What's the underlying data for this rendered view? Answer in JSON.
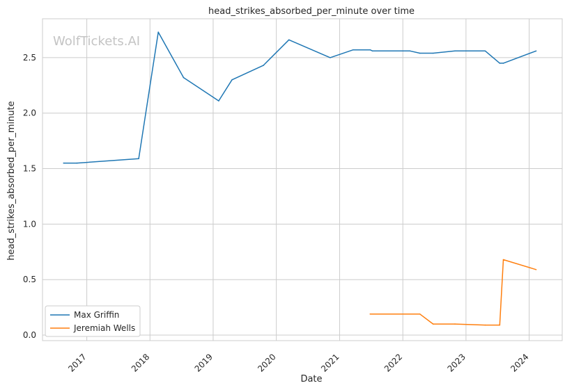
{
  "chart_data": {
    "type": "line",
    "title": "head_strikes_absorbed_per_minute over time",
    "xlabel": "Date",
    "ylabel": "head_strikes_absorbed_per_minute",
    "watermark": "WolfTickets.AI",
    "x_ticks": [
      "2017",
      "2018",
      "2019",
      "2020",
      "2021",
      "2022",
      "2023",
      "2024"
    ],
    "y_ticks": [
      "0.0",
      "0.5",
      "1.0",
      "1.5",
      "2.0",
      "2.5"
    ],
    "xlim": [
      "2016-04-20",
      "2024-07-10"
    ],
    "ylim": [
      -0.05,
      2.85
    ],
    "grid": true,
    "legend_position": "lower-left",
    "series": [
      {
        "name": "Max Griffin",
        "color": "#1f77b4",
        "points": [
          [
            "2016-08-20",
            1.55
          ],
          [
            "2016-11-05",
            1.55
          ],
          [
            "2017-10-28",
            1.59
          ],
          [
            "2018-02-18",
            2.73
          ],
          [
            "2018-07-14",
            2.32
          ],
          [
            "2019-02-02",
            2.11
          ],
          [
            "2019-04-20",
            2.3
          ],
          [
            "2019-10-18",
            2.43
          ],
          [
            "2020-03-14",
            2.66
          ],
          [
            "2020-11-07",
            2.5
          ],
          [
            "2021-03-20",
            2.57
          ],
          [
            "2021-06-26",
            2.57
          ],
          [
            "2021-07-10",
            2.56
          ],
          [
            "2022-02-12",
            2.56
          ],
          [
            "2022-04-09",
            2.54
          ],
          [
            "2022-06-25",
            2.54
          ],
          [
            "2022-10-29",
            2.56
          ],
          [
            "2023-04-22",
            2.56
          ],
          [
            "2023-07-15",
            2.45
          ],
          [
            "2023-08-05",
            2.45
          ],
          [
            "2024-02-10",
            2.56
          ]
        ]
      },
      {
        "name": "Jeremiah Wells",
        "color": "#ff7f0e",
        "points": [
          [
            "2021-06-26",
            0.19
          ],
          [
            "2022-04-09",
            0.19
          ],
          [
            "2022-06-25",
            0.1
          ],
          [
            "2022-10-29",
            0.1
          ],
          [
            "2023-04-22",
            0.09
          ],
          [
            "2023-07-15",
            0.09
          ],
          [
            "2023-08-05",
            0.68
          ],
          [
            "2024-02-10",
            0.59
          ]
        ]
      }
    ]
  }
}
